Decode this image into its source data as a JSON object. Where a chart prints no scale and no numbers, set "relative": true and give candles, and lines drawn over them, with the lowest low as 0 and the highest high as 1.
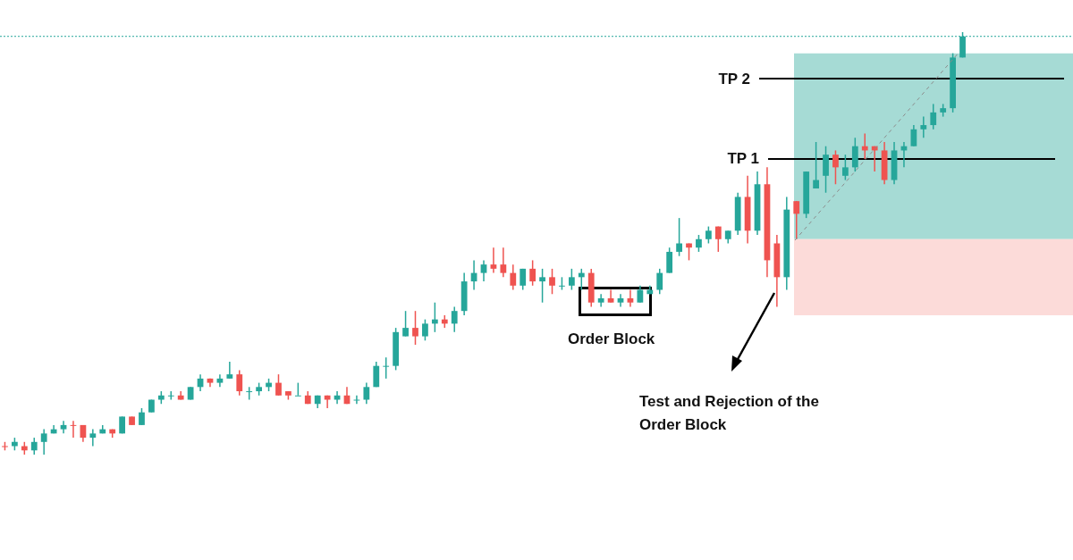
{
  "chart_data": {
    "type": "candlestick",
    "relative": true,
    "categories": [
      null,
      null,
      null,
      null,
      null,
      null,
      null,
      null,
      null,
      null,
      null,
      null,
      null,
      null,
      null,
      null,
      null,
      null,
      null,
      null,
      null,
      null,
      null,
      null,
      null,
      null,
      null,
      null,
      null,
      null,
      null,
      null,
      null,
      null,
      null,
      null,
      null,
      null,
      null,
      null,
      null,
      null,
      null,
      null,
      null,
      null,
      null,
      null,
      null,
      null,
      null,
      null,
      null,
      null,
      null,
      null,
      null,
      null,
      null,
      null,
      null,
      null,
      null,
      null,
      null,
      null,
      null,
      null,
      null,
      null,
      null,
      null,
      null,
      null,
      null,
      null,
      null,
      null,
      null,
      null,
      null,
      null,
      null,
      null,
      null,
      null,
      null,
      null,
      null,
      null,
      null,
      null,
      null,
      null,
      null,
      null,
      null,
      null,
      null
    ],
    "ohlc": [
      [
        0.02,
        0.03,
        0.01,
        0.02
      ],
      [
        0.02,
        0.04,
        0.01,
        0.03
      ],
      [
        0.02,
        0.03,
        0,
        0.01
      ],
      [
        0.01,
        0.04,
        0,
        0.03
      ],
      [
        0.03,
        0.06,
        0,
        0.05
      ],
      [
        0.05,
        0.07,
        0.05,
        0.06
      ],
      [
        0.06,
        0.08,
        0.05,
        0.07
      ],
      [
        0.07,
        0.08,
        0.04,
        0.07
      ],
      [
        0.07,
        0.07,
        0.03,
        0.04
      ],
      [
        0.04,
        0.06,
        0.02,
        0.05
      ],
      [
        0.05,
        0.07,
        0.05,
        0.06
      ],
      [
        0.06,
        0.06,
        0.04,
        0.05
      ],
      [
        0.05,
        0.09,
        0.05,
        0.09
      ],
      [
        0.09,
        0.09,
        0.07,
        0.07
      ],
      [
        0.07,
        0.11,
        0.07,
        0.1
      ],
      [
        0.1,
        0.13,
        0.1,
        0.13
      ],
      [
        0.13,
        0.15,
        0.12,
        0.14
      ],
      [
        0.14,
        0.15,
        0.13,
        0.14
      ],
      [
        0.14,
        0.15,
        0.13,
        0.13
      ],
      [
        0.13,
        0.16,
        0.13,
        0.16
      ],
      [
        0.16,
        0.19,
        0.15,
        0.18
      ],
      [
        0.18,
        0.18,
        0.16,
        0.17
      ],
      [
        0.17,
        0.19,
        0.16,
        0.18
      ],
      [
        0.18,
        0.22,
        0.18,
        0.19
      ],
      [
        0.19,
        0.2,
        0.14,
        0.15
      ],
      [
        0.15,
        0.16,
        0.13,
        0.15
      ],
      [
        0.15,
        0.17,
        0.14,
        0.16
      ],
      [
        0.16,
        0.18,
        0.15,
        0.17
      ],
      [
        0.17,
        0.19,
        0.14,
        0.14
      ],
      [
        0.15,
        0.15,
        0.13,
        0.14
      ],
      [
        0.14,
        0.17,
        0.14,
        0.14
      ],
      [
        0.14,
        0.15,
        0.12,
        0.12
      ],
      [
        0.12,
        0.14,
        0.11,
        0.14
      ],
      [
        0.14,
        0.14,
        0.11,
        0.13
      ],
      [
        0.13,
        0.15,
        0.12,
        0.14
      ],
      [
        0.14,
        0.16,
        0.12,
        0.12
      ],
      [
        0.13,
        0.14,
        0.12,
        0.13
      ],
      [
        0.13,
        0.17,
        0.12,
        0.16
      ],
      [
        0.16,
        0.22,
        0.16,
        0.21
      ],
      [
        0.21,
        0.23,
        0.18,
        0.21
      ],
      [
        0.21,
        0.3,
        0.2,
        0.29
      ],
      [
        0.28,
        0.34,
        0.28,
        0.3
      ],
      [
        0.3,
        0.34,
        0.26,
        0.28
      ],
      [
        0.28,
        0.32,
        0.27,
        0.31
      ],
      [
        0.31,
        0.36,
        0.29,
        0.32
      ],
      [
        0.32,
        0.33,
        0.3,
        0.31
      ],
      [
        0.31,
        0.35,
        0.29,
        0.34
      ],
      [
        0.34,
        0.43,
        0.33,
        0.41
      ],
      [
        0.41,
        0.46,
        0.39,
        0.43
      ],
      [
        0.43,
        0.46,
        0.41,
        0.45
      ],
      [
        0.45,
        0.49,
        0.43,
        0.44
      ],
      [
        0.45,
        0.49,
        0.42,
        0.43
      ],
      [
        0.43,
        0.45,
        0.39,
        0.4
      ],
      [
        0.4,
        0.44,
        0.39,
        0.44
      ],
      [
        0.44,
        0.46,
        0.4,
        0.41
      ],
      [
        0.41,
        0.44,
        0.36,
        0.42
      ],
      [
        0.42,
        0.44,
        0.38,
        0.4
      ],
      [
        0.4,
        0.42,
        0.39,
        0.4
      ],
      [
        0.4,
        0.44,
        0.39,
        0.42
      ],
      [
        0.42,
        0.44,
        0.39,
        0.43
      ],
      [
        0.43,
        0.44,
        0.35,
        0.36
      ],
      [
        0.36,
        0.38,
        0.35,
        0.37
      ],
      [
        0.37,
        0.39,
        0.36,
        0.36
      ],
      [
        0.36,
        0.38,
        0.35,
        0.37
      ],
      [
        0.37,
        0.39,
        0.35,
        0.36
      ],
      [
        0.36,
        0.4,
        0.36,
        0.39
      ],
      [
        0.38,
        0.4,
        0.38,
        0.39
      ],
      [
        0.39,
        0.44,
        0.38,
        0.43
      ],
      [
        0.43,
        0.49,
        0.43,
        0.48
      ],
      [
        0.48,
        0.56,
        0.47,
        0.5
      ],
      [
        0.5,
        0.5,
        0.46,
        0.49
      ],
      [
        0.49,
        0.52,
        0.48,
        0.51
      ],
      [
        0.51,
        0.54,
        0.5,
        0.53
      ],
      [
        0.54,
        0.54,
        0.48,
        0.51
      ],
      [
        0.51,
        0.53,
        0.5,
        0.53
      ],
      [
        0.53,
        0.62,
        0.52,
        0.61
      ],
      [
        0.61,
        0.66,
        0.5,
        0.53
      ],
      [
        0.53,
        0.67,
        0.52,
        0.64
      ],
      [
        0.64,
        0.68,
        0.42,
        0.46
      ],
      [
        0.5,
        0.52,
        0.35,
        0.42
      ],
      [
        0.42,
        0.61,
        0.39,
        0.58
      ],
      [
        0.6,
        0.6,
        0.51,
        0.57
      ],
      [
        0.57,
        0.67,
        0.56,
        0.67
      ],
      [
        0.63,
        0.74,
        0.63,
        0.65
      ],
      [
        0.66,
        0.73,
        0.62,
        0.71
      ],
      [
        0.71,
        0.72,
        0.64,
        0.68
      ],
      [
        0.66,
        0.71,
        0.65,
        0.68
      ],
      [
        0.68,
        0.75,
        0.67,
        0.73
      ],
      [
        0.73,
        0.76,
        0.7,
        0.72
      ],
      [
        0.73,
        0.73,
        0.67,
        0.72
      ],
      [
        0.72,
        0.74,
        0.64,
        0.65
      ],
      [
        0.65,
        0.74,
        0.64,
        0.72
      ],
      [
        0.72,
        0.74,
        0.68,
        0.73
      ],
      [
        0.73,
        0.78,
        0.73,
        0.77
      ],
      [
        0.77,
        0.8,
        0.75,
        0.78
      ],
      [
        0.78,
        0.83,
        0.77,
        0.81
      ],
      [
        0.81,
        0.83,
        0.8,
        0.82
      ],
      [
        0.82,
        0.95,
        0.81,
        0.94
      ],
      [
        0.94,
        1,
        0.94,
        0.99
      ]
    ],
    "colors": [
      "#ef5350",
      "#26a69a",
      "#ef5350",
      "#26a69a",
      "#26a69a",
      "#26a69a",
      "#26a69a",
      "#ef5350",
      "#ef5350",
      "#26a69a",
      "#26a69a",
      "#ef5350",
      "#26a69a",
      "#ef5350",
      "#26a69a",
      "#26a69a",
      "#26a69a",
      "#26a69a",
      "#ef5350",
      "#26a69a",
      "#26a69a",
      "#ef5350",
      "#26a69a",
      "#26a69a",
      "#ef5350",
      "#26a69a",
      "#26a69a",
      "#26a69a",
      "#ef5350",
      "#ef5350",
      "#26a69a",
      "#ef5350",
      "#26a69a",
      "#ef5350",
      "#26a69a",
      "#ef5350",
      "#26a69a",
      "#26a69a",
      "#26a69a",
      "#26a69a",
      "#26a69a",
      "#26a69a",
      "#ef5350",
      "#26a69a",
      "#26a69a",
      "#ef5350",
      "#26a69a",
      "#26a69a",
      "#26a69a",
      "#26a69a",
      "#ef5350",
      "#ef5350",
      "#ef5350",
      "#26a69a",
      "#ef5350",
      "#26a69a",
      "#ef5350",
      "#26a69a",
      "#26a69a",
      "#26a69a",
      "#ef5350",
      "#26a69a",
      "#ef5350",
      "#26a69a",
      "#ef5350",
      "#26a69a",
      "#26a69a",
      "#26a69a",
      "#26a69a",
      "#26a69a",
      "#ef5350",
      "#26a69a",
      "#26a69a",
      "#ef5350",
      "#26a69a",
      "#26a69a",
      "#ef5350",
      "#26a69a",
      "#ef5350",
      "#ef5350",
      "#26a69a",
      "#ef5350",
      "#26a69a",
      "#26a69a",
      "#26a69a",
      "#ef5350",
      "#26a69a",
      "#26a69a",
      "#ef5350",
      "#ef5350",
      "#ef5350",
      "#26a69a",
      "#26a69a",
      "#26a69a",
      "#26a69a",
      "#26a69a",
      "#26a69a",
      "#26a69a",
      "#26a69a"
    ],
    "ref_lines": [
      {
        "axis": "y",
        "value": 0.89,
        "label": "TP 2",
        "color": "#000000"
      },
      {
        "axis": "y",
        "value": 0.7,
        "label": "TP 1",
        "color": "#000000"
      },
      {
        "axis": "y",
        "value": 0.99,
        "color": "#26a69a",
        "line_style": "dotted"
      }
    ],
    "bands": [
      {
        "axis": "y",
        "from": 0.51,
        "to": 0.95,
        "color": "#a6dbd5"
      },
      {
        "axis": "y",
        "from": 0.33,
        "to": 0.51,
        "color": "#fcdbd9"
      }
    ],
    "annotations": [
      "Order Block",
      "Test and Rejection of the Order Block"
    ]
  }
}
